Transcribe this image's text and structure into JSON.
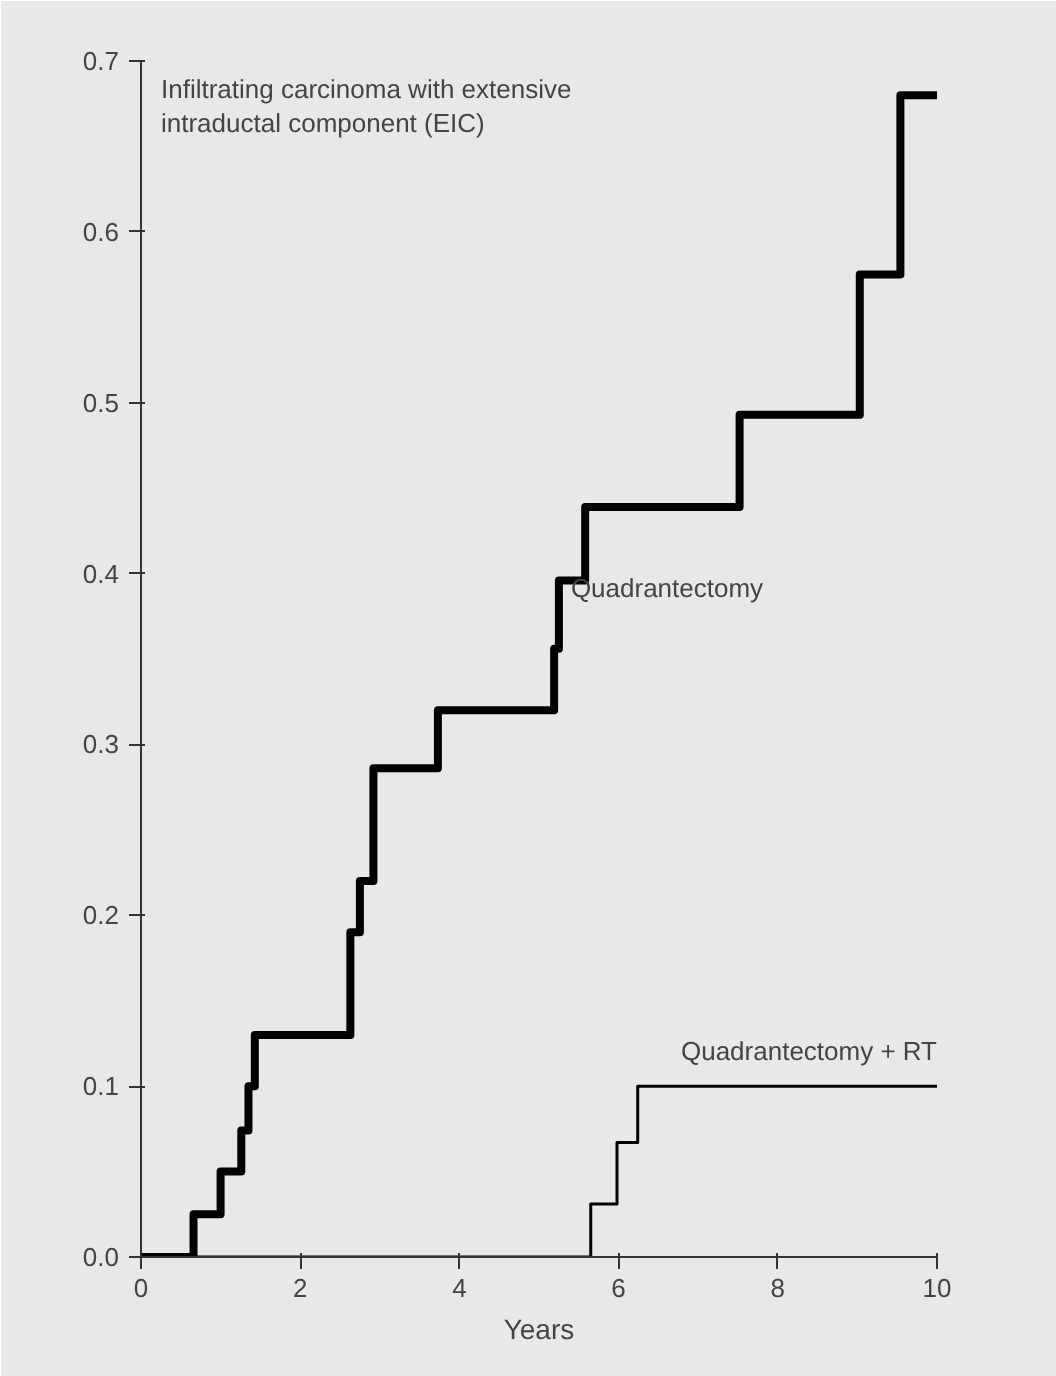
{
  "chart_data": {
    "type": "step",
    "title": "Infiltrating carcinoma with extensive intraductal component (EIC)",
    "xlabel": "Years",
    "series": [
      {
        "name": "Quadrantectomy",
        "color": "#000000",
        "x": [
          0,
          0.66,
          1.0,
          1.26,
          1.35,
          1.43,
          2.63,
          2.75,
          2.92,
          3.73,
          5.19,
          5.25,
          5.58,
          7.52,
          9.03,
          9.54,
          10
        ],
        "values": [
          0,
          0.025,
          0.05,
          0.074,
          0.1,
          0.13,
          0.19,
          0.22,
          0.286,
          0.32,
          0.356,
          0.396,
          0.439,
          0.493,
          0.575,
          0.68,
          0.68
        ]
      },
      {
        "name": "Quadrantectomy + RT",
        "color": "#000000",
        "x": [
          0,
          5.65,
          5.98,
          6.24,
          10
        ],
        "values": [
          0,
          0.031,
          0.067,
          0.1,
          0.1
        ]
      }
    ],
    "xlim": [
      0,
      10
    ],
    "xticks": [
      0,
      2,
      4,
      6,
      8,
      10
    ],
    "ylim": [
      0,
      0.7
    ],
    "yticks": [
      {
        "value": 0,
        "label": "0.0"
      },
      0.1,
      0.2,
      0.3,
      0.4,
      0.5,
      0.6,
      0.7
    ]
  }
}
